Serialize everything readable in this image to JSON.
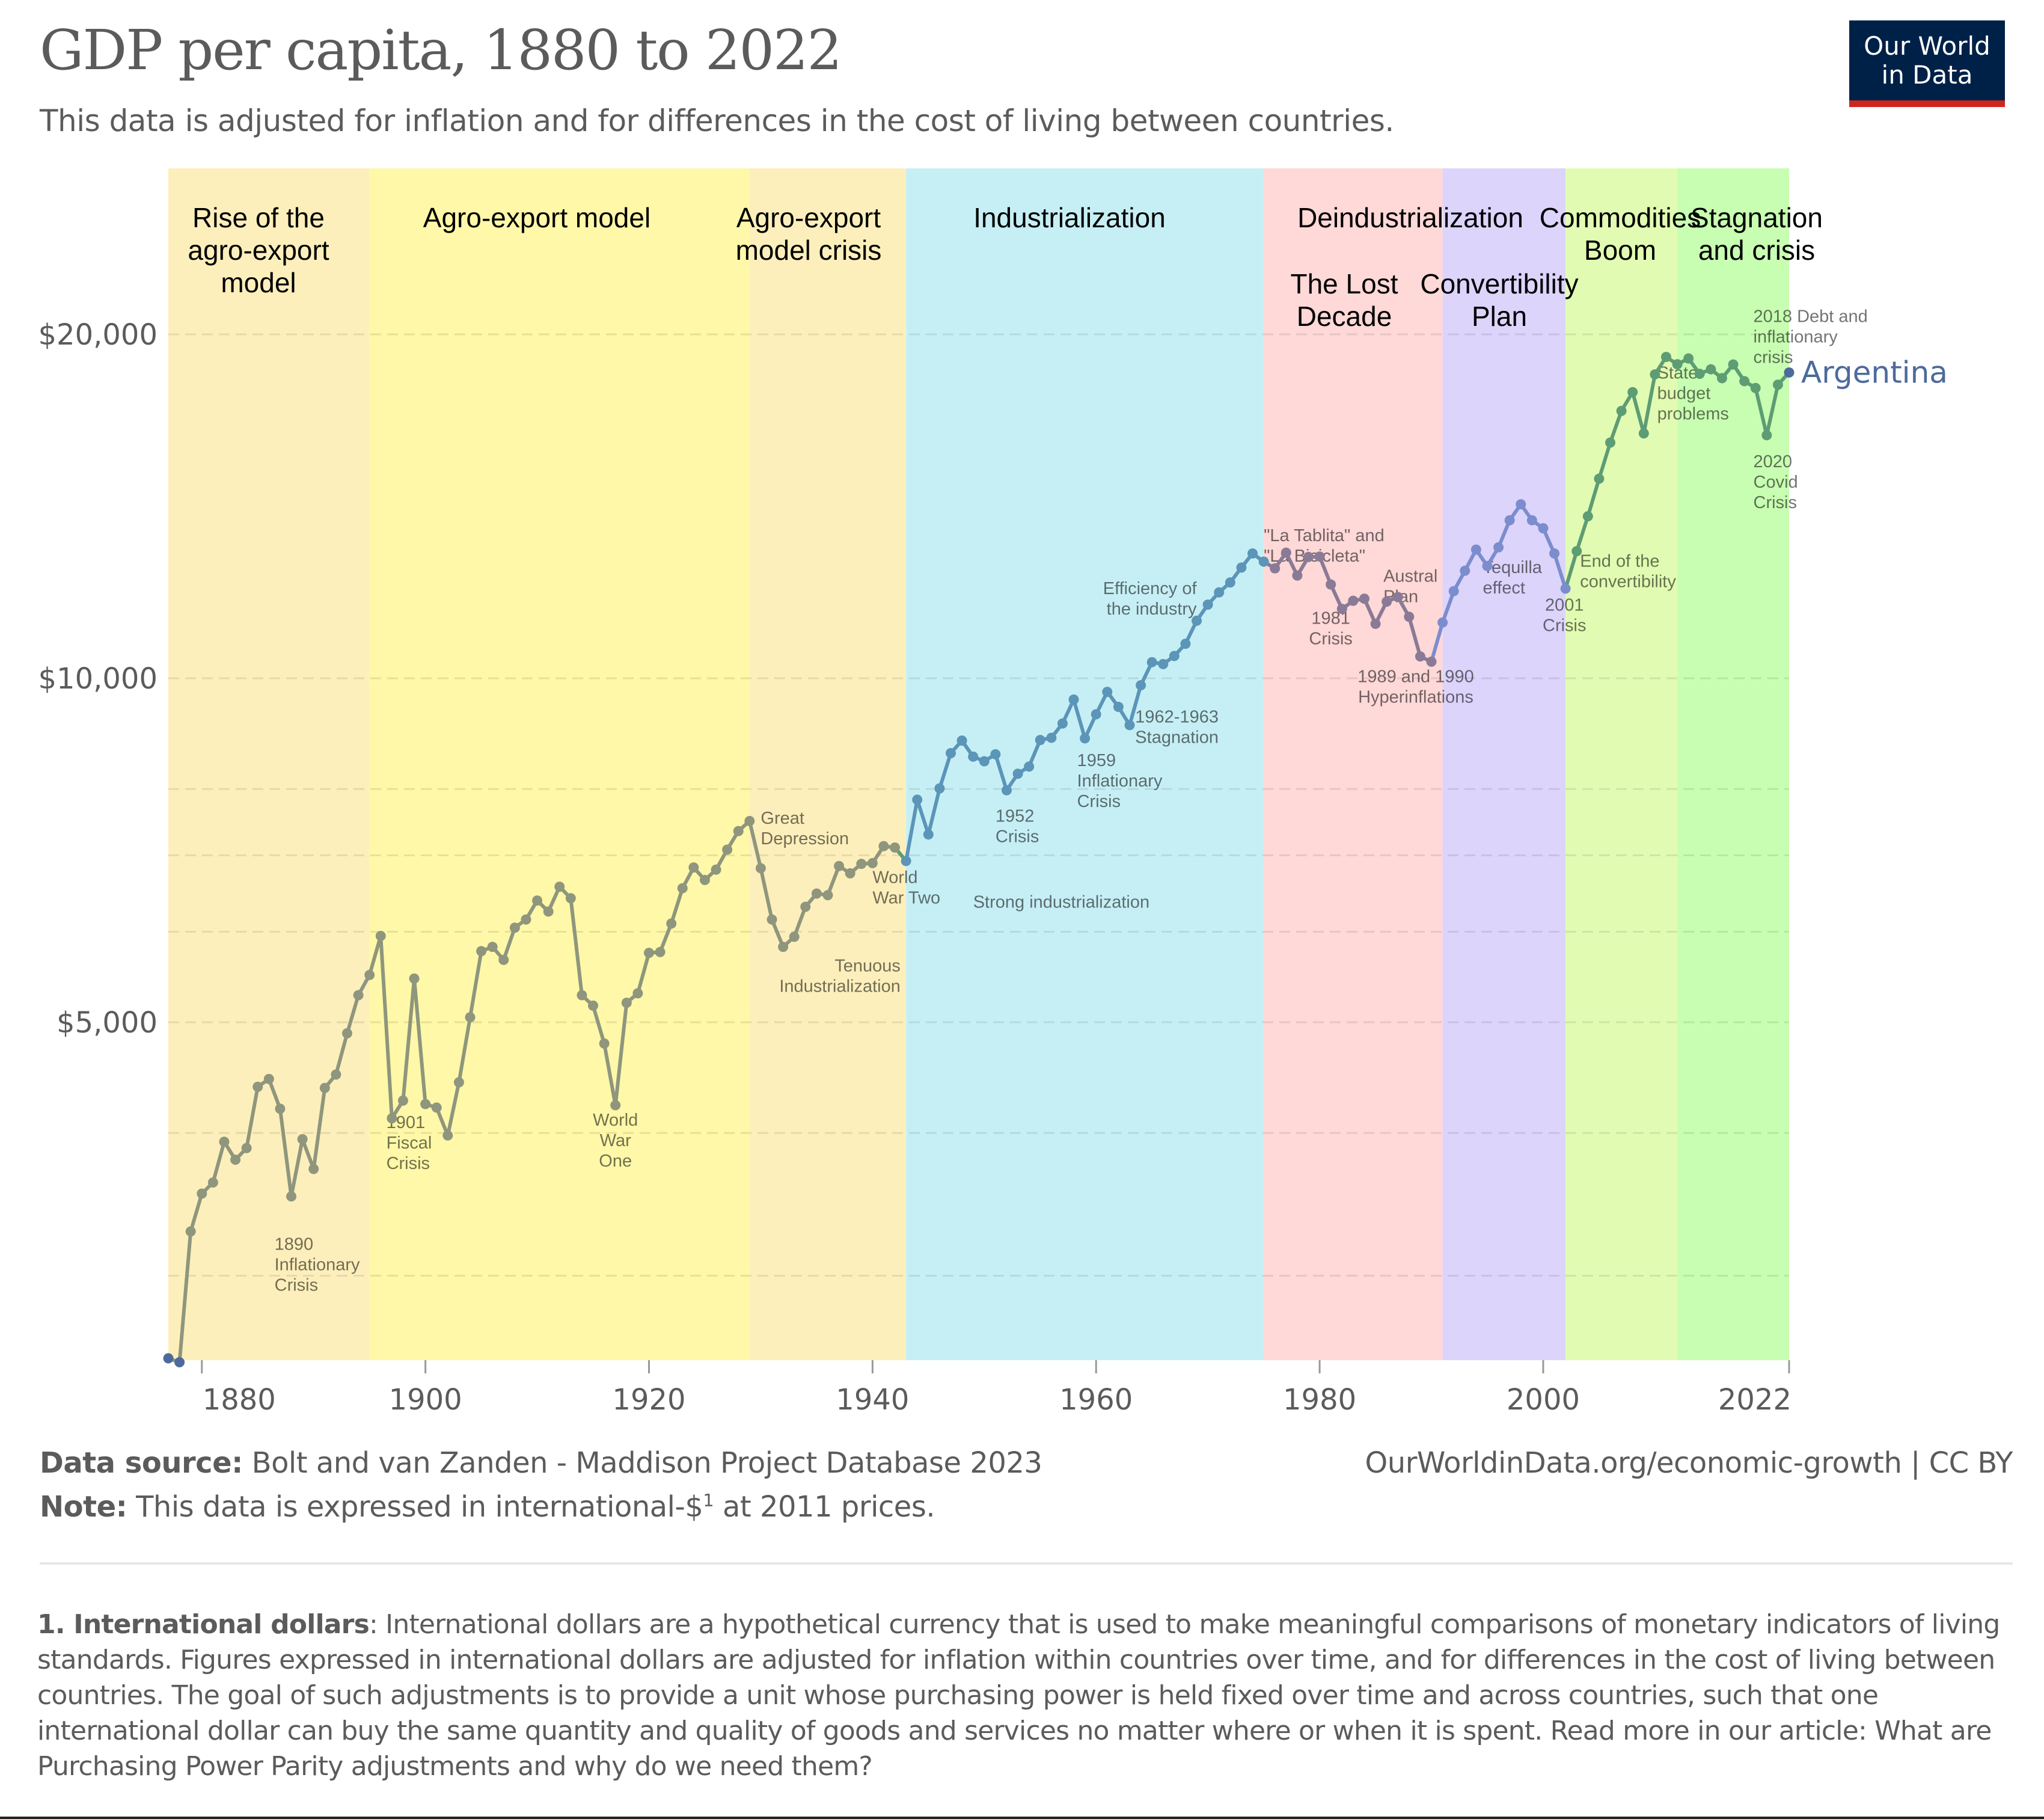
{
  "header": {
    "title": "GDP per capita, 1880 to 2022",
    "subtitle": "This data is adjusted for inflation and for differences in the cost of living between countries.",
    "logo_line1": "Our World",
    "logo_line2": "in Data"
  },
  "footer": {
    "source_label": "Data source:",
    "source_text": " Bolt and van Zanden - Maddison Project Database 2023",
    "note_label": "Note:",
    "note_text_pre": " This data is expressed in international-$",
    "note_sup": "1",
    "note_text_post": " at 2011 prices.",
    "url": "OurWorldinData.org/economic-growth | CC BY",
    "footnote_label": "1. International dollars",
    "footnote_text": ": International dollars are a hypothetical currency that is used to make meaningful comparisons of monetary indicators of living standards. Figures expressed in international dollars are adjusted for inflation within countries over time, and for differences in the cost of living between countries. The goal of such adjustments is to provide a unit whose purchasing power is held fixed over time and across countries, such that one international dollar can buy the same quantity and quality of goods and services no matter where or when it is spent. Read more in our article: What are Purchasing Power Parity adjustments and why do we need them?"
  },
  "colors": {
    "text": "#5b5b5b",
    "logo_bg": "#002147",
    "logo_accent": "#ce261e",
    "series_label": "#4c6a9c"
  },
  "chart_data": {
    "type": "line",
    "title": "GDP per capita, 1880 to 2022",
    "xlabel": "",
    "ylabel": "",
    "yscale": "log",
    "xlim": [
      1877,
      2022
    ],
    "ylim": [
      2530,
      25000
    ],
    "grid": true,
    "x_ticks": [
      1880,
      1900,
      1920,
      1940,
      1960,
      1980,
      2000,
      2022
    ],
    "y_ticks": [
      {
        "value": 5000,
        "label": "$5,000"
      },
      {
        "value": 10000,
        "label": "$10,000"
      },
      {
        "value": 20000,
        "label": "$20,000"
      }
    ],
    "y_minor_grid": [
      3000,
      4000,
      6000,
      7000,
      8000
    ],
    "legend": "end-of-line label",
    "series": [
      {
        "name": "Argentina",
        "x": [
          1877,
          1878,
          1879,
          1880,
          1881,
          1882,
          1883,
          1884,
          1885,
          1886,
          1887,
          1888,
          1889,
          1890,
          1891,
          1892,
          1893,
          1894,
          1895,
          1896,
          1897,
          1898,
          1899,
          1900,
          1901,
          1902,
          1903,
          1904,
          1905,
          1906,
          1907,
          1908,
          1909,
          1910,
          1911,
          1912,
          1913,
          1914,
          1915,
          1916,
          1917,
          1918,
          1919,
          1920,
          1921,
          1922,
          1923,
          1924,
          1925,
          1926,
          1927,
          1928,
          1929,
          1930,
          1931,
          1932,
          1933,
          1934,
          1935,
          1936,
          1937,
          1938,
          1939,
          1940,
          1941,
          1942,
          1943,
          1944,
          1945,
          1946,
          1947,
          1948,
          1949,
          1950,
          1951,
          1952,
          1953,
          1954,
          1955,
          1956,
          1957,
          1958,
          1959,
          1960,
          1961,
          1962,
          1963,
          1964,
          1965,
          1966,
          1967,
          1968,
          1969,
          1970,
          1971,
          1972,
          1973,
          1974,
          1975,
          1976,
          1977,
          1978,
          1979,
          1980,
          1981,
          1982,
          1983,
          1984,
          1985,
          1986,
          1987,
          1988,
          1989,
          1990,
          1991,
          1992,
          1993,
          1994,
          1995,
          1996,
          1997,
          1998,
          1999,
          2000,
          2001,
          2002,
          2003,
          2004,
          2005,
          2006,
          2007,
          2008,
          2009,
          2010,
          2011,
          2012,
          2013,
          2014,
          2015,
          2016,
          2017,
          2018,
          2019,
          2020,
          2021,
          2022
        ],
        "values": [
          2540,
          2520,
          3280,
          3540,
          3620,
          3930,
          3790,
          3880,
          4390,
          4460,
          4200,
          3520,
          3950,
          3720,
          4380,
          4500,
          4890,
          5280,
          5500,
          5950,
          4120,
          4270,
          5460,
          4240,
          4210,
          3980,
          4430,
          5050,
          5770,
          5820,
          5670,
          6050,
          6150,
          6390,
          6250,
          6570,
          6420,
          5280,
          5170,
          4790,
          4230,
          5200,
          5300,
          5750,
          5760,
          6100,
          6550,
          6830,
          6660,
          6800,
          7080,
          7350,
          7500,
          6820,
          6150,
          5820,
          5940,
          6310,
          6480,
          6460,
          6850,
          6750,
          6880,
          6890,
          7130,
          7110,
          6920,
          7830,
          7300,
          8010,
          8600,
          8820,
          8540,
          8460,
          8580,
          7980,
          8250,
          8370,
          8830,
          8870,
          9130,
          9580,
          8860,
          9300,
          9730,
          9440,
          9100,
          9860,
          10330,
          10290,
          10460,
          10720,
          11230,
          11600,
          11890,
          12130,
          12500,
          12860,
          12650,
          12480,
          12880,
          12300,
          12770,
          12780,
          12080,
          11500,
          11690,
          11740,
          11160,
          11670,
          11780,
          11320,
          10450,
          10340,
          11190,
          11920,
          12420,
          12960,
          12540,
          13020,
          13750,
          14200,
          13750,
          13530,
          12860,
          11980,
          12920,
          13860,
          14950,
          16080,
          17140,
          17800,
          16380,
          18450,
          19110,
          18830,
          19050,
          18470,
          18640,
          18310,
          18820,
          18200,
          17950,
          16320,
          18070,
          18520
        ]
      }
    ],
    "segments_color": [
      {
        "from": 1877,
        "to": 1942,
        "color": "#8f967d"
      },
      {
        "from": 1943,
        "to": 1975,
        "color": "#5b95b8"
      },
      {
        "from": 1975,
        "to": 1990,
        "color": "#8a7a96"
      },
      {
        "from": 1990,
        "to": 2002,
        "color": "#7c8dce"
      },
      {
        "from": 2002,
        "to": 2022,
        "color": "#5e9c74"
      }
    ],
    "periods": [
      {
        "from": 1877,
        "to": 1895,
        "color": "#fdefbb",
        "label": [
          "Rise of the",
          "agro-export",
          "model"
        ]
      },
      {
        "from": 1895,
        "to": 1929,
        "color": "#fef8a8",
        "label": [
          "Agro-export model"
        ]
      },
      {
        "from": 1929,
        "to": 1943,
        "color": "#fdefbb",
        "label": [
          "Agro-export",
          "model crisis"
        ]
      },
      {
        "from": 1943,
        "to": 1975,
        "color": "#c6eff5",
        "label": [
          "Industrialization"
        ]
      },
      {
        "from": 1975,
        "to": 1991,
        "color": "#ffd8d8",
        "label": [
          "The Lost",
          "Decade"
        ]
      },
      {
        "from": 1991,
        "to": 2002,
        "color": "#dcd4fb",
        "label": [
          "Convertibility",
          "Plan"
        ]
      },
      {
        "from": 2002,
        "to": 2012,
        "color": "#e1fcb2",
        "label": [
          "Commodities",
          "Boom"
        ]
      },
      {
        "from": 2012,
        "to": 2022,
        "color": "#c8feb2",
        "label": [
          "Stagnation",
          "and crisis"
        ]
      }
    ],
    "overlay_labels": [
      {
        "text": [
          "Deindustrialization"
        ],
        "x": 1984,
        "row": 0
      }
    ],
    "annotations": [
      {
        "text": [
          "1890",
          "Inflationary",
          "Crisis"
        ],
        "x": 1886.5,
        "y": 3160,
        "anchor": "start"
      },
      {
        "text": [
          "1901",
          "Fiscal",
          "Crisis"
        ],
        "x": 1896.5,
        "y": 4040,
        "anchor": "start"
      },
      {
        "text": [
          "World",
          "War",
          "One"
        ],
        "x": 1917,
        "y": 4060,
        "anchor": "middle"
      },
      {
        "text": [
          "Great",
          "Depression"
        ],
        "x": 1930,
        "y": 7460,
        "anchor": "start"
      },
      {
        "text": [
          "Tenuous",
          "Industrialization"
        ],
        "x": 1942.5,
        "y": 5540,
        "anchor": "end"
      },
      {
        "text": [
          "World",
          "War Two"
        ],
        "x": 1940,
        "y": 6620,
        "anchor": "start"
      },
      {
        "text": [
          "Strong industrialization"
        ],
        "x": 1949,
        "y": 6300,
        "anchor": "start"
      },
      {
        "text": [
          "1952",
          "Crisis"
        ],
        "x": 1951,
        "y": 7490,
        "anchor": "start"
      },
      {
        "text": [
          "1959",
          "Inflationary",
          "Crisis"
        ],
        "x": 1958.3,
        "y": 8380,
        "anchor": "start"
      },
      {
        "text": [
          "1962-1963",
          "Stagnation"
        ],
        "x": 1963.5,
        "y": 9150,
        "anchor": "start"
      },
      {
        "text": [
          "Efficiency of",
          "the industry"
        ],
        "x": 1969,
        "y": 11850,
        "anchor": "end"
      },
      {
        "text": [
          "\"La Tablita\" and",
          "\"La Bicicleta\""
        ],
        "x": 1975,
        "y": 13180,
        "anchor": "start"
      },
      {
        "text": [
          "1981",
          "Crisis"
        ],
        "x": 1981,
        "y": 11160,
        "anchor": "middle"
      },
      {
        "text": [
          "Austral",
          "Plan"
        ],
        "x": 1985.7,
        "y": 12150,
        "anchor": "start"
      },
      {
        "text": [
          "1989 and 1990",
          "Hyperinflations"
        ],
        "x": 1988.6,
        "y": 9920,
        "anchor": "middle"
      },
      {
        "text": [
          "Tequilla",
          "effect"
        ],
        "x": 1994.6,
        "y": 12360,
        "anchor": "start"
      },
      {
        "text": [
          "2001",
          "Crisis"
        ],
        "x": 2001.9,
        "y": 11460,
        "anchor": "middle"
      },
      {
        "text": [
          "End of the",
          "convertibility"
        ],
        "x": 2003.3,
        "y": 12520,
        "anchor": "start"
      },
      {
        "text": [
          "State",
          "budget",
          "problems"
        ],
        "x": 2010.2,
        "y": 18300,
        "anchor": "start"
      },
      {
        "text": [
          "2018 Debt and",
          "inflationary",
          "crisis"
        ],
        "x": 2018.8,
        "y": 20500,
        "anchor": "start"
      },
      {
        "text": [
          "2020",
          "Covid",
          "Crisis"
        ],
        "x": 2018.8,
        "y": 15300,
        "anchor": "start"
      }
    ]
  }
}
